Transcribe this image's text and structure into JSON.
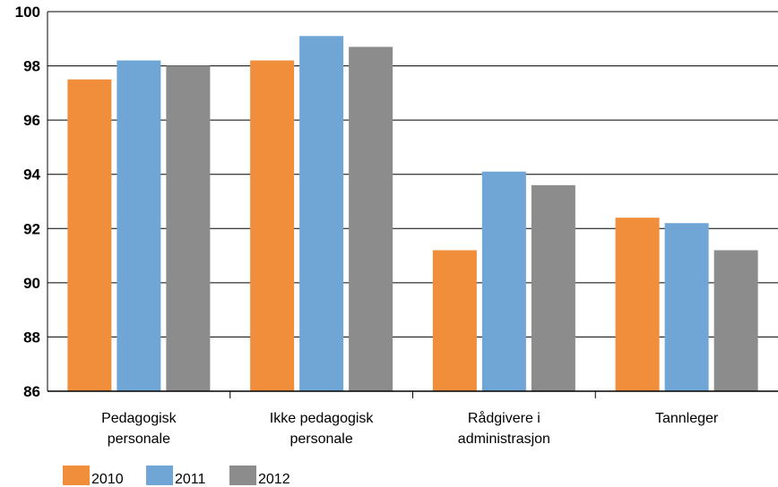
{
  "chart_data": {
    "type": "bar",
    "categories": [
      [
        "Pedagogisk",
        "personale"
      ],
      [
        "Ikke pedagogisk",
        "personale"
      ],
      [
        "Rådgivere i",
        "administrasjon"
      ],
      [
        "Tannleger"
      ]
    ],
    "series": [
      {
        "name": "2010",
        "color": "#F08E3C",
        "values": [
          97.5,
          98.2,
          91.2,
          92.4
        ]
      },
      {
        "name": "2011",
        "color": "#6FA6D6",
        "values": [
          98.2,
          99.1,
          94.1,
          92.2
        ]
      },
      {
        "name": "2012",
        "color": "#8C8C8D",
        "values": [
          98.0,
          98.7,
          93.6,
          91.2
        ]
      }
    ],
    "yticks": [
      "86",
      "88",
      "90",
      "92",
      "94",
      "96",
      "98",
      "100"
    ],
    "ylim": [
      86,
      100
    ],
    "grid": true,
    "legend_position": "bottom-left"
  }
}
